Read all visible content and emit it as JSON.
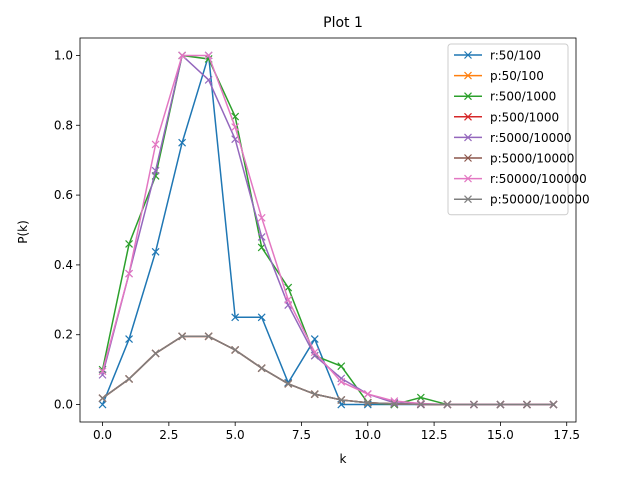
{
  "chart_data": {
    "type": "line",
    "title": "Plot 1",
    "xlabel": "k",
    "ylabel": "P(k)",
    "xlim": [
      -0.85,
      17.85
    ],
    "ylim": [
      -0.05,
      1.05
    ],
    "xticks": [
      0.0,
      2.5,
      5.0,
      7.5,
      10.0,
      12.5,
      15.0,
      17.5
    ],
    "xtick_labels": [
      "0.0",
      "2.5",
      "5.0",
      "7.5",
      "10.0",
      "12.5",
      "15.0",
      "17.5"
    ],
    "yticks": [
      0.0,
      0.2,
      0.4,
      0.6,
      0.8,
      1.0
    ],
    "ytick_labels": [
      "0.0",
      "0.2",
      "0.4",
      "0.6",
      "0.8",
      "1.0"
    ],
    "grid": false,
    "legend_position": "top-right",
    "marker": "x",
    "x": [
      0,
      1,
      2,
      3,
      4,
      5,
      6,
      7,
      8,
      9,
      10,
      11,
      12,
      13,
      14,
      15,
      16,
      17
    ],
    "series": [
      {
        "name": "r:50/100",
        "color": "#1f77b4",
        "values": [
          0.0,
          0.1875,
          0.4375,
          0.75,
          1.0,
          0.25,
          0.25,
          0.0625,
          0.1875,
          0.0,
          0.0,
          0.0,
          0.0,
          0.0,
          0.0,
          0.0,
          0.0,
          0.0
        ]
      },
      {
        "name": "p:50/100",
        "color": "#ff7f0e",
        "values": [
          0.0183,
          0.0733,
          0.1465,
          0.1954,
          0.1954,
          0.1563,
          0.1042,
          0.0595,
          0.0298,
          0.0132,
          0.0053,
          0.0019,
          0.0006,
          0.0002,
          0.0001,
          0.0,
          0.0,
          0.0
        ]
      },
      {
        "name": "r:500/1000",
        "color": "#2ca02c",
        "values": [
          0.1,
          0.46,
          0.655,
          1.0,
          0.99,
          0.825,
          0.45,
          0.335,
          0.14,
          0.11,
          0.005,
          0.0,
          0.02,
          0.0,
          0.0,
          0.0,
          0.0,
          0.0
        ]
      },
      {
        "name": "p:500/1000",
        "color": "#d62728",
        "values": [
          0.0183,
          0.0733,
          0.1465,
          0.1954,
          0.1954,
          0.1563,
          0.1042,
          0.0595,
          0.0298,
          0.0132,
          0.0053,
          0.0019,
          0.0006,
          0.0002,
          0.0001,
          0.0,
          0.0,
          0.0
        ]
      },
      {
        "name": "r:5000/10000",
        "color": "#9467bd",
        "values": [
          0.085,
          0.375,
          0.67,
          1.0,
          0.93,
          0.76,
          0.48,
          0.285,
          0.14,
          0.075,
          0.03,
          0.005,
          0.0,
          0.0,
          0.0,
          0.0,
          0.0,
          0.0
        ]
      },
      {
        "name": "p:5000/10000",
        "color": "#8c564b",
        "values": [
          0.0183,
          0.0733,
          0.1465,
          0.1954,
          0.1954,
          0.1563,
          0.1042,
          0.0595,
          0.0298,
          0.0132,
          0.0053,
          0.0019,
          0.0006,
          0.0002,
          0.0001,
          0.0,
          0.0,
          0.0
        ]
      },
      {
        "name": "r:50000/100000",
        "color": "#e377c2",
        "values": [
          0.095,
          0.375,
          0.745,
          1.0,
          1.0,
          0.795,
          0.535,
          0.3,
          0.15,
          0.065,
          0.03,
          0.01,
          0.003,
          0.0,
          0.0,
          0.0,
          0.0,
          0.0
        ]
      },
      {
        "name": "p:50000/100000",
        "color": "#7f7f7f",
        "values": [
          0.0183,
          0.0733,
          0.1465,
          0.1954,
          0.1954,
          0.1563,
          0.1042,
          0.0595,
          0.0298,
          0.0132,
          0.0053,
          0.0019,
          0.0006,
          0.0002,
          0.0001,
          0.0,
          0.0,
          0.0
        ]
      }
    ]
  }
}
